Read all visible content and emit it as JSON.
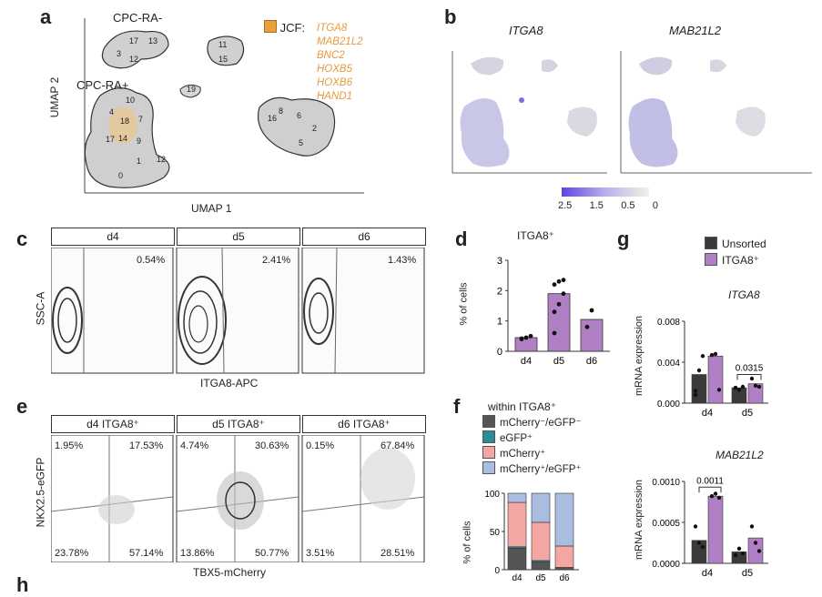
{
  "panel_labels": {
    "a": "a",
    "b": "b",
    "c": "c",
    "d": "d",
    "e": "e",
    "f": "f",
    "g": "g",
    "h": "h"
  },
  "colors": {
    "jcf": "#e8a13c",
    "purple": "#b07fc4",
    "dark": "#3a3a3a",
    "teal": "#2b8c99",
    "pink": "#f4a6a2",
    "lightblue": "#a8bde0"
  },
  "panel_a": {
    "cluster_title_top": "CPC-RA-",
    "cluster_title_bottom": "CPC-RA+",
    "jcf_label": "JCF:",
    "jcf_genes": [
      "ITGA8",
      "MAB21L2",
      "BNC2",
      "HOXB5",
      "HOXB6",
      "HAND1"
    ],
    "xlabel": "UMAP 1",
    "ylabel": "UMAP 2",
    "cluster_ids": [
      "17",
      "13",
      "3",
      "12",
      "11",
      "15",
      "19",
      "10",
      "4",
      "18",
      "7",
      "8",
      "16",
      "6",
      "2",
      "5",
      "17",
      "14",
      "9",
      "1",
      "12",
      "0"
    ]
  },
  "panel_b": {
    "gene1": "ITGA8",
    "gene2": "MAB21L2",
    "scale_ticks": [
      "2.5",
      "1.5",
      "0.5",
      "0"
    ]
  },
  "panel_c": {
    "days": [
      "d4",
      "d5",
      "d6"
    ],
    "percents": [
      "0.54%",
      "2.41%",
      "1.43%"
    ],
    "ylabel": "SSC-A",
    "xlabel": "ITGA8-APC"
  },
  "panel_d": {
    "title": "ITGA8⁺",
    "ylabel": "% of cells",
    "chart_data": {
      "type": "bar",
      "categories": [
        "d4",
        "d5",
        "d6"
      ],
      "values": [
        0.45,
        1.9,
        1.05
      ],
      "points": [
        [
          0.4,
          0.45,
          0.5,
          0.42
        ],
        [
          1.3,
          1.55,
          1.9,
          2.2,
          2.3,
          2.35,
          0.6
        ],
        [
          0.8,
          1.35
        ]
      ],
      "ylim": [
        0,
        3
      ],
      "yticks": [
        "0",
        "1",
        "2",
        "3"
      ]
    }
  },
  "panel_e": {
    "headers": [
      "d4 ITGA8⁺",
      "d5 ITGA8⁺",
      "d6 ITGA8⁺"
    ],
    "quadrants": [
      {
        "tl": "1.95%",
        "tr": "17.53%",
        "bl": "23.78%",
        "br": "57.14%"
      },
      {
        "tl": "4.74%",
        "tr": "30.63%",
        "bl": "13.86%",
        "br": "50.77%"
      },
      {
        "tl": "0.15%",
        "tr": "67.84%",
        "bl": "3.51%",
        "br": "28.51%"
      }
    ],
    "ylabel": "NKX2.5-eGFP",
    "xlabel": "TBX5-mCherry"
  },
  "panel_f": {
    "legend_title": "within ITGA8⁺",
    "legend": [
      "mCherry⁻/eGFP⁻",
      "eGFP⁺",
      "mCherry⁺",
      "mCherry⁺/eGFP⁺"
    ],
    "ylabel": "% of cells",
    "chart_data": {
      "type": "bar",
      "stacked": true,
      "categories": [
        "d4",
        "d5",
        "d6"
      ],
      "series": [
        {
          "name": "mCherry⁻/eGFP⁻",
          "values": [
            28,
            10,
            3
          ]
        },
        {
          "name": "eGFP⁺",
          "values": [
            2,
            2,
            0
          ]
        },
        {
          "name": "mCherry⁺",
          "values": [
            58,
            50,
            28
          ]
        },
        {
          "name": "mCherry⁺/eGFP⁺",
          "values": [
            12,
            38,
            69
          ]
        }
      ],
      "ylim": [
        0,
        100
      ],
      "yticks": [
        "0",
        "50",
        "100"
      ]
    }
  },
  "panel_g": {
    "legend": [
      "Unsorted",
      "ITGA8⁺"
    ],
    "ylabel": "mRNA expression",
    "chart_data": [
      {
        "type": "bar",
        "title": "ITGA8",
        "categories": [
          "d4",
          "d5"
        ],
        "series": [
          {
            "name": "Unsorted",
            "values": [
              0.0028,
              0.0015
            ]
          },
          {
            "name": "ITGA8⁺",
            "values": [
              0.0046,
              0.0019
            ]
          }
        ],
        "points": {
          "Unsorted": [
            [
              0.0008,
              0.0032,
              0.0046,
              0.0012
            ],
            [
              0.0015,
              0.0013,
              0.0016,
              0.0015
            ]
          ],
          "ITGA8⁺": [
            [
              0.0047,
              0.0048,
              0.0013
            ],
            [
              0.0024,
              0.0017,
              0.0016
            ]
          ]
        },
        "ylim": [
          0,
          0.008
        ],
        "yticks": [
          "0.000",
          "0.004",
          "0.008"
        ],
        "annotation": "0.0315"
      },
      {
        "type": "bar",
        "title": "MAB21L2",
        "categories": [
          "d4",
          "d5"
        ],
        "series": [
          {
            "name": "Unsorted",
            "values": [
              0.00028,
              0.00014
            ]
          },
          {
            "name": "ITGA8⁺",
            "values": [
              0.00082,
              0.00031
            ]
          }
        ],
        "points": {
          "Unsorted": [
            [
              0.00045,
              0.00025,
              0.0002
            ],
            [
              0.0001,
              0.00018,
              0.00012
            ]
          ],
          "ITGA8⁺": [
            [
              0.00082,
              0.00085,
              0.0008
            ],
            [
              0.00045,
              0.00025,
              0.00015
            ]
          ]
        },
        "ylim": [
          0,
          0.001
        ],
        "yticks": [
          "0.0000",
          "0.0005",
          "0.0010"
        ],
        "annotation": "0.0011"
      }
    ]
  }
}
